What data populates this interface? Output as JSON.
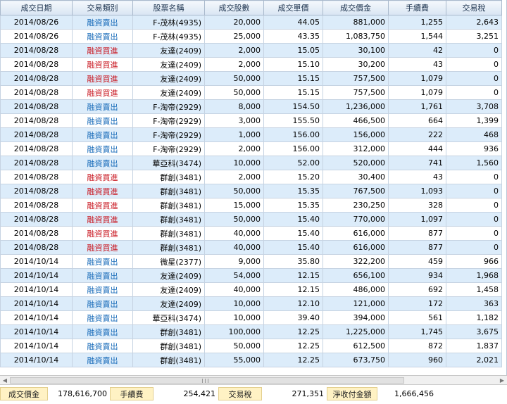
{
  "columns": [
    "成交日期",
    "交易類別",
    "股票名稱",
    "成交股數",
    "成交單價",
    "成交價金",
    "手續費",
    "交易稅"
  ],
  "rows": [
    {
      "date": "2014/08/26",
      "type": "融資賣出",
      "name": "F-茂林(4935)",
      "shares": "20,000",
      "price": "44.05",
      "amount": "881,000",
      "fee": "1,255",
      "tax": "2,643"
    },
    {
      "date": "2014/08/26",
      "type": "融資賣出",
      "name": "F-茂林(4935)",
      "shares": "25,000",
      "price": "43.35",
      "amount": "1,083,750",
      "fee": "1,544",
      "tax": "3,251"
    },
    {
      "date": "2014/08/28",
      "type": "融資買進",
      "name": "友達(2409)",
      "shares": "2,000",
      "price": "15.05",
      "amount": "30,100",
      "fee": "42",
      "tax": "0"
    },
    {
      "date": "2014/08/28",
      "type": "融資買進",
      "name": "友達(2409)",
      "shares": "2,000",
      "price": "15.10",
      "amount": "30,200",
      "fee": "43",
      "tax": "0"
    },
    {
      "date": "2014/08/28",
      "type": "融資買進",
      "name": "友達(2409)",
      "shares": "50,000",
      "price": "15.15",
      "amount": "757,500",
      "fee": "1,079",
      "tax": "0"
    },
    {
      "date": "2014/08/28",
      "type": "融資買進",
      "name": "友達(2409)",
      "shares": "50,000",
      "price": "15.15",
      "amount": "757,500",
      "fee": "1,079",
      "tax": "0"
    },
    {
      "date": "2014/08/28",
      "type": "融資賣出",
      "name": "F-淘帝(2929)",
      "shares": "8,000",
      "price": "154.50",
      "amount": "1,236,000",
      "fee": "1,761",
      "tax": "3,708"
    },
    {
      "date": "2014/08/28",
      "type": "融資賣出",
      "name": "F-淘帝(2929)",
      "shares": "3,000",
      "price": "155.50",
      "amount": "466,500",
      "fee": "664",
      "tax": "1,399"
    },
    {
      "date": "2014/08/28",
      "type": "融資賣出",
      "name": "F-淘帝(2929)",
      "shares": "1,000",
      "price": "156.00",
      "amount": "156,000",
      "fee": "222",
      "tax": "468"
    },
    {
      "date": "2014/08/28",
      "type": "融資賣出",
      "name": "F-淘帝(2929)",
      "shares": "2,000",
      "price": "156.00",
      "amount": "312,000",
      "fee": "444",
      "tax": "936"
    },
    {
      "date": "2014/08/28",
      "type": "融資賣出",
      "name": "華亞科(3474)",
      "shares": "10,000",
      "price": "52.00",
      "amount": "520,000",
      "fee": "741",
      "tax": "1,560"
    },
    {
      "date": "2014/08/28",
      "type": "融資買進",
      "name": "群創(3481)",
      "shares": "2,000",
      "price": "15.20",
      "amount": "30,400",
      "fee": "43",
      "tax": "0"
    },
    {
      "date": "2014/08/28",
      "type": "融資買進",
      "name": "群創(3481)",
      "shares": "50,000",
      "price": "15.35",
      "amount": "767,500",
      "fee": "1,093",
      "tax": "0"
    },
    {
      "date": "2014/08/28",
      "type": "融資買進",
      "name": "群創(3481)",
      "shares": "15,000",
      "price": "15.35",
      "amount": "230,250",
      "fee": "328",
      "tax": "0"
    },
    {
      "date": "2014/08/28",
      "type": "融資買進",
      "name": "群創(3481)",
      "shares": "50,000",
      "price": "15.40",
      "amount": "770,000",
      "fee": "1,097",
      "tax": "0"
    },
    {
      "date": "2014/08/28",
      "type": "融資買進",
      "name": "群創(3481)",
      "shares": "40,000",
      "price": "15.40",
      "amount": "616,000",
      "fee": "877",
      "tax": "0"
    },
    {
      "date": "2014/08/28",
      "type": "融資買進",
      "name": "群創(3481)",
      "shares": "40,000",
      "price": "15.40",
      "amount": "616,000",
      "fee": "877",
      "tax": "0"
    },
    {
      "date": "2014/10/14",
      "type": "融資賣出",
      "name": "微星(2377)",
      "shares": "9,000",
      "price": "35.80",
      "amount": "322,200",
      "fee": "459",
      "tax": "966"
    },
    {
      "date": "2014/10/14",
      "type": "融資賣出",
      "name": "友達(2409)",
      "shares": "54,000",
      "price": "12.15",
      "amount": "656,100",
      "fee": "934",
      "tax": "1,968"
    },
    {
      "date": "2014/10/14",
      "type": "融資賣出",
      "name": "友達(2409)",
      "shares": "40,000",
      "price": "12.15",
      "amount": "486,000",
      "fee": "692",
      "tax": "1,458"
    },
    {
      "date": "2014/10/14",
      "type": "融資賣出",
      "name": "友達(2409)",
      "shares": "10,000",
      "price": "12.10",
      "amount": "121,000",
      "fee": "172",
      "tax": "363"
    },
    {
      "date": "2014/10/14",
      "type": "融資賣出",
      "name": "華亞科(3474)",
      "shares": "10,000",
      "price": "39.40",
      "amount": "394,000",
      "fee": "561",
      "tax": "1,182"
    },
    {
      "date": "2014/10/14",
      "type": "融資賣出",
      "name": "群創(3481)",
      "shares": "100,000",
      "price": "12.25",
      "amount": "1,225,000",
      "fee": "1,745",
      "tax": "3,675"
    },
    {
      "date": "2014/10/14",
      "type": "融資賣出",
      "name": "群創(3481)",
      "shares": "50,000",
      "price": "12.25",
      "amount": "612,500",
      "fee": "872",
      "tax": "1,837"
    },
    {
      "date": "2014/10/14",
      "type": "融資賣出",
      "name": "群創(3481)",
      "shares": "55,000",
      "price": "12.25",
      "amount": "673,750",
      "fee": "960",
      "tax": "2,021"
    }
  ],
  "summary": {
    "amount_label": "成交價金",
    "amount_value": "178,616,700",
    "fee_label": "手續費",
    "fee_value": "254,421",
    "tax_label": "交易稅",
    "tax_value": "271,351",
    "net_label": "淨收付金額",
    "net_value": "1,666,456"
  },
  "colors": {
    "sell": "#1569b8",
    "buy": "#c8141e",
    "row_alt": "#dcecfa",
    "label_bg": "#fff2c4"
  },
  "icons": {
    "scroll_left": "arrow-left-icon",
    "scroll_right": "arrow-right-icon"
  }
}
